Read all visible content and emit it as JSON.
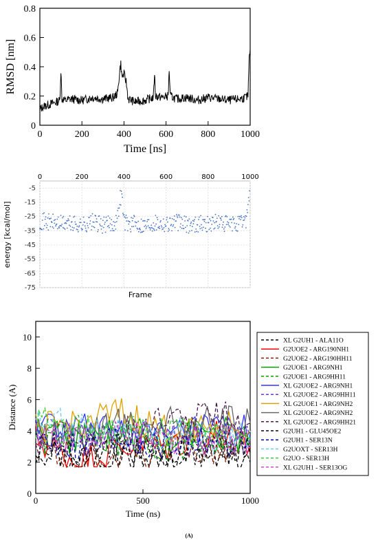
{
  "chart_data": [
    {
      "type": "line",
      "xlabel": "Time [ns]",
      "ylabel": "RMSD [nm]",
      "xlim": [
        0,
        1000
      ],
      "ylim": [
        0,
        0.8
      ],
      "xticks": [
        0,
        200,
        400,
        600,
        800,
        1000
      ],
      "yticks": [
        0,
        0.2,
        0.4,
        0.6,
        0.8
      ],
      "xtick_labels": [
        "0",
        "200",
        "400",
        "600",
        "800",
        "1000"
      ],
      "ytick_labels": [
        "0",
        "0.2",
        "0.4",
        "0.6",
        "0.8"
      ],
      "series": [
        {
          "color": "#000000",
          "x": [
            0,
            20,
            40,
            60,
            80,
            95,
            100,
            105,
            120,
            150,
            200,
            250,
            300,
            350,
            370,
            380,
            385,
            390,
            400,
            410,
            420,
            450,
            500,
            540,
            545,
            550,
            580,
            610,
            615,
            620,
            650,
            700,
            750,
            800,
            850,
            900,
            950,
            980,
            990,
            995,
            1000
          ],
          "y": [
            0.11,
            0.13,
            0.14,
            0.15,
            0.16,
            0.17,
            0.38,
            0.18,
            0.17,
            0.18,
            0.17,
            0.19,
            0.18,
            0.19,
            0.22,
            0.38,
            0.42,
            0.33,
            0.35,
            0.3,
            0.18,
            0.16,
            0.17,
            0.19,
            0.36,
            0.2,
            0.19,
            0.2,
            0.38,
            0.2,
            0.18,
            0.19,
            0.17,
            0.19,
            0.18,
            0.17,
            0.18,
            0.19,
            0.2,
            0.45,
            0.52
          ]
        }
      ]
    },
    {
      "type": "scatter",
      "xlabel": "Frame",
      "ylabel": "energy [kcal/mol]",
      "xlim": [
        0,
        1000
      ],
      "ylim": [
        -75,
        0
      ],
      "xticks": [
        0,
        200,
        400,
        600,
        800,
        1000
      ],
      "yticks": [
        -5,
        -15,
        -25,
        -35,
        -45,
        -55,
        -65,
        -75
      ],
      "xtick_labels": [
        "0",
        "200",
        "400",
        "600",
        "800",
        "1000"
      ],
      "ytick_labels": [
        "-5",
        "-15",
        "-25",
        "-35",
        "-45",
        "-55",
        "-65",
        "-75"
      ],
      "grid": true,
      "series": [
        {
          "color": "#4472c4",
          "x": [
            0,
            50,
            100,
            150,
            200,
            250,
            300,
            350,
            370,
            380,
            390,
            400,
            420,
            450,
            500,
            550,
            600,
            650,
            700,
            750,
            800,
            850,
            900,
            950,
            980,
            990,
            1000
          ],
          "y": [
            -28,
            -29,
            -30,
            -30,
            -31,
            -29,
            -31,
            -30,
            -26,
            -12,
            -10,
            -28,
            -30,
            -30,
            -31,
            -29,
            -30,
            -29,
            -31,
            -30,
            -30,
            -29,
            -31,
            -30,
            -27,
            -15,
            -10
          ]
        }
      ]
    },
    {
      "type": "line",
      "xlabel": "Time (ns)",
      "ylabel": "Distance (A)",
      "title": "(A)",
      "xlim": [
        0,
        1000
      ],
      "ylim": [
        0,
        11
      ],
      "xticks": [
        0,
        500,
        1000
      ],
      "yticks": [
        0,
        2,
        4,
        6,
        8,
        10
      ],
      "xtick_labels": [
        "0",
        "500",
        "1000"
      ],
      "ytick_labels": [
        "0",
        "2",
        "4",
        "6",
        "8",
        "10"
      ],
      "series": [
        {
          "name": "XL G2UH1 - ALA11O",
          "color": "#000000",
          "dashed": true,
          "x": [
            0,
            200,
            400,
            600,
            800,
            1000
          ],
          "y": [
            3,
            2,
            2.5,
            2,
            2.5,
            2
          ]
        },
        {
          "name": "G2UOE2 - ARG190NH1",
          "color": "#ff0000",
          "dashed": false,
          "x": [
            0,
            200,
            400,
            600,
            800,
            1000
          ],
          "y": [
            3.5,
            2,
            3,
            3,
            4,
            3
          ]
        },
        {
          "name": "G2UOE2 - ARG190HH11",
          "color": "#8b1a00",
          "dashed": true,
          "x": [
            0,
            200,
            400,
            600,
            800,
            1000
          ],
          "y": [
            3,
            2,
            2.5,
            2.5,
            3,
            2.5
          ]
        },
        {
          "name": "G2UOE1 - ARG9NH1",
          "color": "#00a000",
          "dashed": false,
          "x": [
            0,
            200,
            400,
            600,
            800,
            1000
          ],
          "y": [
            4,
            3.5,
            4,
            3.5,
            4,
            3.5
          ]
        },
        {
          "name": "G2UOE1 - ARG9HH11",
          "color": "#00a000",
          "dashed": true,
          "x": [
            0,
            200,
            400,
            600,
            800,
            1000
          ],
          "y": [
            3.5,
            3,
            3.5,
            3,
            3.5,
            3
          ]
        },
        {
          "name": "XL G2UOE2 - ARG9NH1",
          "color": "#3333ff",
          "dashed": false,
          "x": [
            0,
            200,
            400,
            600,
            800,
            1000
          ],
          "y": [
            4.5,
            4,
            4,
            3.5,
            4,
            4
          ]
        },
        {
          "name": "XL G2UOE2 - ARG9HH11",
          "color": "#6633cc",
          "dashed": true,
          "x": [
            0,
            200,
            400,
            600,
            800,
            1000
          ],
          "y": [
            4,
            3.5,
            3.5,
            3.5,
            3.5,
            3.5
          ]
        },
        {
          "name": "XL G2UOE1 - ARG9NH2",
          "color": "#e0a000",
          "dashed": false,
          "x": [
            0,
            200,
            400,
            600,
            800,
            1000
          ],
          "y": [
            4,
            4.5,
            5,
            4,
            4.5,
            4
          ]
        },
        {
          "name": "XL G2UOE2 - ARG9NH2",
          "color": "#666666",
          "dashed": false,
          "x": [
            0,
            200,
            400,
            600,
            800,
            1000
          ],
          "y": [
            4,
            4,
            4.5,
            4.5,
            4.5,
            4.5
          ]
        },
        {
          "name": "XL G2UOE2 - ARG9HH21",
          "color": "#4a1a4a",
          "dashed": true,
          "x": [
            0,
            200,
            400,
            600,
            800,
            1000
          ],
          "y": [
            3.5,
            3.5,
            4,
            4.5,
            5,
            4.5
          ]
        },
        {
          "name": "G2UH1 - GLU45OE2",
          "color": "#000000",
          "dashed": true,
          "x": [
            0,
            200,
            400,
            600,
            800,
            1000
          ],
          "y": [
            3,
            2.5,
            3,
            2.5,
            3,
            2.5
          ]
        },
        {
          "name": "G2UH1 - SER13N",
          "color": "#0000aa",
          "dashed": true,
          "x": [
            0,
            200,
            400,
            600,
            800,
            1000
          ],
          "y": [
            3.5,
            3,
            3.5,
            3,
            3.5,
            3
          ]
        },
        {
          "name": "G2UOXT - SER13H",
          "color": "#66ccee",
          "dashed": true,
          "x": [
            0,
            200,
            400,
            600,
            800,
            1000
          ],
          "y": [
            5,
            4,
            4,
            4,
            3.5,
            4
          ]
        },
        {
          "name": "G2UO - SER13H",
          "color": "#33cc33",
          "dashed": true,
          "x": [
            0,
            200,
            400,
            600,
            800,
            1000
          ],
          "y": [
            4.5,
            4,
            4,
            4,
            3.5,
            3.5
          ]
        },
        {
          "name": "XL G2UH1 - SER13OG",
          "color": "#cc44cc",
          "dashed": true,
          "x": [
            0,
            200,
            400,
            600,
            800,
            1000
          ],
          "y": [
            4,
            3.5,
            3.5,
            3.5,
            3.5,
            3.5
          ]
        }
      ]
    }
  ]
}
